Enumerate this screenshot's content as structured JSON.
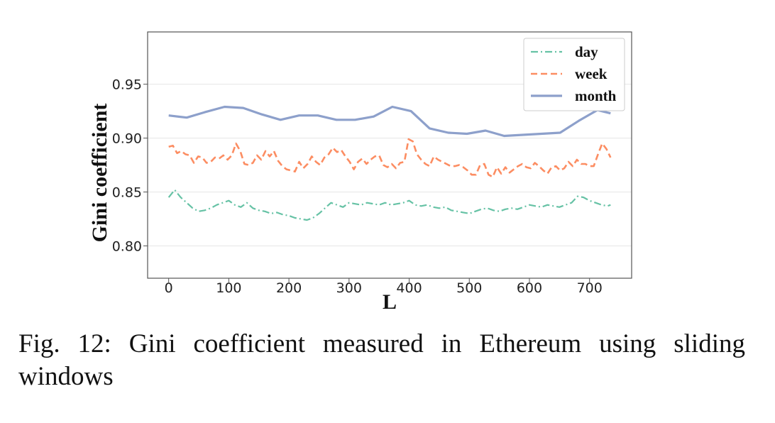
{
  "caption": "Fig. 12: Gini coefficient measured in Ethereum using sliding windows",
  "chart_data": {
    "type": "line",
    "xlabel": "L",
    "ylabel": "Gini coefficient",
    "xlim": [
      -35,
      770
    ],
    "ylim": [
      0.77,
      0.9985
    ],
    "xticks": [
      0,
      100,
      200,
      300,
      400,
      500,
      600,
      700
    ],
    "yticks": [
      0.8,
      0.85,
      0.9,
      0.95
    ],
    "grid": true,
    "legend_position": "top-right",
    "series": [
      {
        "name": "day",
        "color": "#66c2a5",
        "style": "dashdot",
        "x": [
          0,
          10,
          20,
          30,
          40,
          50,
          60,
          70,
          80,
          90,
          100,
          110,
          120,
          130,
          140,
          150,
          160,
          170,
          180,
          190,
          200,
          210,
          220,
          230,
          240,
          250,
          260,
          270,
          280,
          290,
          300,
          310,
          320,
          330,
          340,
          350,
          360,
          370,
          380,
          390,
          400,
          410,
          420,
          430,
          440,
          450,
          460,
          470,
          480,
          490,
          500,
          510,
          520,
          530,
          540,
          550,
          560,
          570,
          580,
          590,
          600,
          610,
          620,
          630,
          640,
          650,
          660,
          670,
          680,
          690,
          700,
          710,
          720,
          730,
          735
        ],
        "y": [
          0.845,
          0.852,
          0.845,
          0.84,
          0.835,
          0.832,
          0.833,
          0.835,
          0.838,
          0.84,
          0.842,
          0.838,
          0.836,
          0.84,
          0.835,
          0.833,
          0.832,
          0.83,
          0.831,
          0.829,
          0.828,
          0.826,
          0.825,
          0.824,
          0.826,
          0.83,
          0.835,
          0.84,
          0.838,
          0.836,
          0.84,
          0.839,
          0.838,
          0.84,
          0.839,
          0.838,
          0.84,
          0.838,
          0.839,
          0.84,
          0.842,
          0.838,
          0.837,
          0.838,
          0.836,
          0.835,
          0.836,
          0.833,
          0.832,
          0.831,
          0.83,
          0.832,
          0.834,
          0.835,
          0.833,
          0.832,
          0.834,
          0.835,
          0.834,
          0.836,
          0.838,
          0.837,
          0.836,
          0.838,
          0.837,
          0.836,
          0.838,
          0.84,
          0.846,
          0.845,
          0.842,
          0.84,
          0.838,
          0.837,
          0.838
        ]
      },
      {
        "name": "week",
        "color": "#fc8d62",
        "style": "dashed",
        "x": [
          0,
          7,
          14,
          21,
          28,
          35,
          42,
          49,
          56,
          63,
          70,
          77,
          84,
          91,
          98,
          105,
          112,
          119,
          126,
          133,
          140,
          147,
          154,
          161,
          168,
          175,
          182,
          189,
          196,
          203,
          210,
          217,
          224,
          231,
          238,
          245,
          252,
          259,
          266,
          273,
          280,
          287,
          294,
          301,
          308,
          315,
          322,
          329,
          336,
          343,
          350,
          357,
          364,
          371,
          378,
          385,
          392,
          399,
          406,
          413,
          420,
          427,
          434,
          441,
          448,
          455,
          462,
          469,
          476,
          483,
          490,
          497,
          504,
          511,
          518,
          525,
          532,
          539,
          546,
          553,
          560,
          567,
          574,
          581,
          588,
          595,
          602,
          609,
          616,
          623,
          630,
          637,
          644,
          651,
          658,
          665,
          672,
          679,
          686,
          693,
          700,
          707,
          714,
          721,
          728,
          735
        ],
        "y": [
          0.892,
          0.893,
          0.886,
          0.888,
          0.885,
          0.884,
          0.877,
          0.883,
          0.882,
          0.877,
          0.878,
          0.882,
          0.881,
          0.884,
          0.88,
          0.884,
          0.895,
          0.888,
          0.876,
          0.875,
          0.877,
          0.884,
          0.88,
          0.888,
          0.883,
          0.888,
          0.879,
          0.874,
          0.871,
          0.87,
          0.869,
          0.878,
          0.872,
          0.876,
          0.883,
          0.878,
          0.875,
          0.882,
          0.885,
          0.891,
          0.887,
          0.889,
          0.883,
          0.878,
          0.871,
          0.878,
          0.881,
          0.876,
          0.88,
          0.883,
          0.884,
          0.875,
          0.873,
          0.876,
          0.872,
          0.877,
          0.878,
          0.899,
          0.897,
          0.885,
          0.88,
          0.876,
          0.874,
          0.883,
          0.88,
          0.878,
          0.876,
          0.874,
          0.874,
          0.875,
          0.873,
          0.87,
          0.866,
          0.866,
          0.875,
          0.876,
          0.866,
          0.864,
          0.873,
          0.867,
          0.873,
          0.868,
          0.871,
          0.874,
          0.876,
          0.873,
          0.872,
          0.877,
          0.874,
          0.87,
          0.867,
          0.873,
          0.874,
          0.87,
          0.872,
          0.878,
          0.874,
          0.88,
          0.876,
          0.876,
          0.874,
          0.874,
          0.885,
          0.895,
          0.89,
          0.882
        ]
      },
      {
        "name": "month",
        "color": "#8da0cb",
        "style": "solid",
        "x": [
          0,
          30,
          60,
          93,
          124,
          155,
          186,
          217,
          248,
          279,
          310,
          341,
          372,
          403,
          434,
          465,
          496,
          527,
          558,
          589,
          620,
          651,
          682,
          713,
          735
        ],
        "y": [
          0.921,
          0.919,
          0.924,
          0.929,
          0.928,
          0.922,
          0.917,
          0.921,
          0.921,
          0.917,
          0.917,
          0.92,
          0.929,
          0.925,
          0.909,
          0.905,
          0.904,
          0.907,
          0.902,
          0.903,
          0.904,
          0.905,
          0.916,
          0.926,
          0.923
        ]
      }
    ]
  }
}
